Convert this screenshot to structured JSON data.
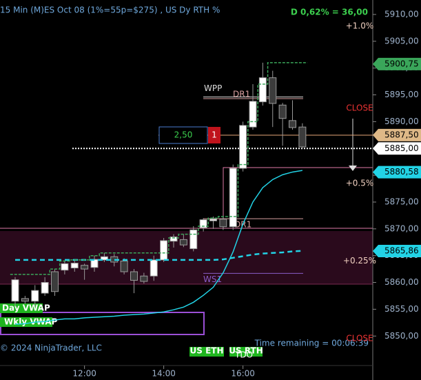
{
  "chart_data": {
    "type": "candlestick",
    "title": "15 Min (M)ES Oct 08 (1%=55p=$275) , US Dy RTH %",
    "change_label": "D 0,62% = 36,00",
    "copyright": "© 2024 NinjaTrader, LLC",
    "time_remaining": "Time remaining = 00:06:39",
    "categories": [
      null,
      null,
      null,
      null,
      null,
      null,
      null,
      "12:00",
      null,
      null,
      null,
      null,
      null,
      null,
      null,
      "14:00",
      null,
      null,
      null,
      null,
      null,
      null,
      null,
      "16:00",
      null,
      null,
      null,
      null,
      null,
      null
    ],
    "open": [
      5856.5,
      5857,
      5856.5,
      5858,
      5862,
      5862.3,
      5862.7,
      5863.2,
      5862.8,
      5864.2,
      5864.8,
      5864,
      5862,
      5861.2,
      5861.2,
      5864.2,
      5867.7,
      5868,
      5866.3,
      5870.2,
      5871.5,
      5871.8,
      5870.4,
      5881.3,
      5889,
      5893.7,
      5898.2,
      5893.1,
      5890.2,
      5889
    ],
    "high": [
      5861,
      5857.5,
      5859.5,
      5861,
      5862.5,
      5864,
      5864.2,
      5863.5,
      5865,
      5865.5,
      5865.3,
      5864.5,
      5862.5,
      5861.8,
      5865,
      5868.3,
      5869,
      5869,
      5870.5,
      5872,
      5872.3,
      5872.2,
      5882,
      5890,
      5897,
      5901,
      5899.5,
      5893.5,
      5894,
      5889.7
    ],
    "low": [
      5855.5,
      5856,
      5855.5,
      5857.5,
      5857.5,
      5861.5,
      5862,
      5860.5,
      5862,
      5863.8,
      5863,
      5861.5,
      5858,
      5859.8,
      5860.3,
      5863.8,
      5866.5,
      5866.6,
      5865.8,
      5869.5,
      5870,
      5869.8,
      5869.8,
      5880.7,
      5888.5,
      5893,
      5889,
      5885.5,
      5888.5,
      5885
    ],
    "close": [
      5860.5,
      5856.5,
      5858.5,
      5860,
      5858.3,
      5863.5,
      5863.6,
      5862.5,
      5864.3,
      5864.8,
      5863.8,
      5862,
      5860.4,
      5860.2,
      5864.2,
      5867.8,
      5868.5,
      5867,
      5869.8,
      5871.7,
      5871.8,
      5870.4,
      5881.3,
      5889.3,
      5893.8,
      5898.2,
      5893.4,
      5890.6,
      5888.9,
      5885.3
    ],
    "up_color": "#ffffff",
    "down_color": "#3c3c3c",
    "lines": [
      {
        "color": "#22d3e6",
        "style": "solid",
        "values": [
          5852.2,
          5852.3,
          5852.6,
          5852.7,
          5853.0,
          5853.2,
          5853.2,
          5853.4,
          5853.5,
          5853.6,
          5853.7,
          5853.9,
          5854.0,
          5854.1,
          5854.3,
          5854.5,
          5854.9,
          5855.4,
          5856.3,
          5857.6,
          5859.1,
          5861.8,
          5865.7,
          5870.9,
          5875.0,
          5877.7,
          5879.2,
          5880.1,
          5880.6,
          5880.9
        ]
      },
      {
        "color": "#22d3e6",
        "style": "dashed",
        "values": [
          5864.2,
          5864.2,
          5864.2,
          5864.2,
          5864.2,
          5864.2,
          5864.2,
          5864.2,
          5864.2,
          5864.2,
          5864.2,
          5864.2,
          5864.2,
          5864.2,
          5864.2,
          5864.2,
          5864.2,
          5864.2,
          5864.2,
          5864.2,
          5864.2,
          5864.3,
          5864.6,
          5864.9,
          5865.2,
          5865.4,
          5865.5,
          5865.6,
          5865.8,
          5865.9
        ]
      },
      {
        "color": "#3aa65a",
        "style": "step",
        "values": [
          5861.5,
          5861.5,
          5861.5,
          5861.5,
          5862.5,
          5864,
          5864.2,
          5864.2,
          5865,
          5865.5,
          5865.5,
          5865.5,
          5865.5,
          5865.5,
          5865.5,
          5865.5,
          5868.3,
          5869,
          5869,
          5870.5,
          5872,
          5872.3,
          5872.3,
          5882,
          5890,
          5897,
          5901,
          5901,
          5901,
          5901
        ]
      }
    ],
    "ylim": [
      5844.5,
      5912.7
    ],
    "yticks": [
      {
        "value": 5850,
        "label": "5850,00"
      },
      {
        "value": 5855,
        "label": "5855,00"
      },
      {
        "value": 5860,
        "label": "5860,00"
      },
      {
        "value": 5865,
        "label": "5865,00"
      },
      {
        "value": 5870,
        "label": "5870,00"
      },
      {
        "value": 5875,
        "label": "5875,00"
      },
      {
        "value": 5880,
        "label": "5880,00"
      },
      {
        "value": 5885,
        "label": "5885,00"
      },
      {
        "value": 5890,
        "label": "5890,00"
      },
      {
        "value": 5895,
        "label": "5895,00"
      },
      {
        "value": 5900,
        "label": "5900,00"
      },
      {
        "value": 5905,
        "label": "5905,00"
      },
      {
        "value": 5910,
        "label": "5910,00"
      }
    ],
    "price_markers": [
      {
        "value": 5900.75,
        "label": "5900,75",
        "color": "#3aa65a"
      },
      {
        "value": 5887.5,
        "label": "5887,50",
        "color": "#deb887"
      },
      {
        "value": 5885,
        "label": "5885,00",
        "color": "#ffffff"
      },
      {
        "value": 5880.58,
        "label": "5880,58",
        "color": "#22d3e6"
      },
      {
        "value": 5865.86,
        "label": "5865,86",
        "color": "#22d3e6"
      }
    ],
    "levels": [
      {
        "label": "WPP",
        "value": 5894.6,
        "color": "#dddddd"
      },
      {
        "label": "DR1",
        "value": 5894.3,
        "color": "#d9a0a0"
      },
      {
        "label": "DR1",
        "value": 5871.9,
        "color": "#d9a0a0"
      },
      {
        "label": "WS1",
        "value": 5861.7,
        "color": "#8a5cc7"
      }
    ],
    "percent_labels": [
      {
        "label": "+1.0%",
        "value": 5907.8
      },
      {
        "label": "+0.5%",
        "value": 5878.5
      },
      {
        "label": "+0.25%",
        "value": 5864.0
      }
    ],
    "order": {
      "price": "2,50",
      "quantity": "1"
    },
    "indicator_labels": [
      "Day VWAP",
      "Wkly VWAP"
    ],
    "session_labels": [
      "US ETH",
      "US RTH",
      "TDO"
    ],
    "close_labels": [
      "CLOSE",
      "CLOSE"
    ]
  }
}
